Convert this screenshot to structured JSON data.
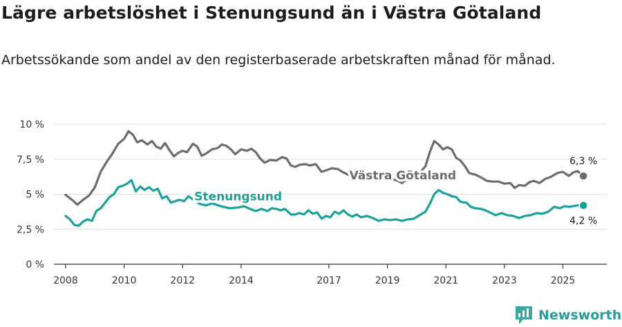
{
  "title": "Lägre arbetslöshet i Stenungsund än i Västra Götaland",
  "subtitle": "Arbetssökande som andel av den registerbaserade arbetskraften månad för månad.",
  "brand": {
    "name": "Newsworthy",
    "icon": "newsworthy-logo-icon",
    "color": "#3aa7a3"
  },
  "chart_data": {
    "type": "line",
    "title": "Lägre arbetslöshet i Stenungsund än i Västra Götaland",
    "xlabel": "",
    "ylabel": "",
    "ylim": [
      0,
      10
    ],
    "xlim": [
      2007.6,
      2026.5
    ],
    "y_ticks": [
      {
        "value": 0,
        "label": "0 %"
      },
      {
        "value": 2.5,
        "label": "2,5 %"
      },
      {
        "value": 5,
        "label": "5 %"
      },
      {
        "value": 7.5,
        "label": "7,5 %"
      },
      {
        "value": 10,
        "label": "10 %"
      }
    ],
    "x_ticks": [
      {
        "value": 2008,
        "label": "2008"
      },
      {
        "value": 2010,
        "label": "2010"
      },
      {
        "value": 2012,
        "label": "2012"
      },
      {
        "value": 2014,
        "label": "2014"
      },
      {
        "value": 2017,
        "label": "2017"
      },
      {
        "value": 2019,
        "label": "2019"
      },
      {
        "value": 2021,
        "label": "2021"
      },
      {
        "value": 2023,
        "label": "2023"
      },
      {
        "value": 2025,
        "label": "2025"
      }
    ],
    "grid": true,
    "series": [
      {
        "name": "Västra Götaland",
        "color": "#6b6b70",
        "end_label": "6,3 %",
        "points": [
          [
            2008.0,
            4.95
          ],
          [
            2008.25,
            4.55
          ],
          [
            2008.4,
            4.25
          ],
          [
            2008.6,
            4.6
          ],
          [
            2008.8,
            4.9
          ],
          [
            2009.0,
            5.5
          ],
          [
            2009.2,
            6.6
          ],
          [
            2009.4,
            7.3
          ],
          [
            2009.6,
            7.9
          ],
          [
            2009.8,
            8.6
          ],
          [
            2010.0,
            8.95
          ],
          [
            2010.15,
            9.5
          ],
          [
            2010.3,
            9.25
          ],
          [
            2010.45,
            8.7
          ],
          [
            2010.6,
            8.85
          ],
          [
            2010.8,
            8.55
          ],
          [
            2010.95,
            8.8
          ],
          [
            2011.1,
            8.4
          ],
          [
            2011.25,
            8.25
          ],
          [
            2011.4,
            8.65
          ],
          [
            2011.55,
            8.15
          ],
          [
            2011.7,
            7.7
          ],
          [
            2011.85,
            7.95
          ],
          [
            2012.0,
            8.1
          ],
          [
            2012.15,
            8.0
          ],
          [
            2012.35,
            8.6
          ],
          [
            2012.5,
            8.4
          ],
          [
            2012.65,
            7.75
          ],
          [
            2012.8,
            7.9
          ],
          [
            2013.0,
            8.2
          ],
          [
            2013.2,
            8.3
          ],
          [
            2013.35,
            8.55
          ],
          [
            2013.5,
            8.45
          ],
          [
            2013.65,
            8.2
          ],
          [
            2013.8,
            7.85
          ],
          [
            2014.0,
            8.2
          ],
          [
            2014.2,
            8.1
          ],
          [
            2014.35,
            8.25
          ],
          [
            2014.5,
            8.0
          ],
          [
            2014.65,
            7.55
          ],
          [
            2014.8,
            7.25
          ],
          [
            2015.0,
            7.45
          ],
          [
            2015.2,
            7.4
          ],
          [
            2015.4,
            7.65
          ],
          [
            2015.55,
            7.55
          ],
          [
            2015.7,
            7.05
          ],
          [
            2015.85,
            6.95
          ],
          [
            2016.0,
            7.1
          ],
          [
            2016.2,
            7.15
          ],
          [
            2016.35,
            7.05
          ],
          [
            2016.55,
            7.15
          ],
          [
            2016.75,
            6.6
          ],
          [
            2016.9,
            6.7
          ],
          [
            2017.1,
            6.85
          ],
          [
            2017.3,
            6.8
          ],
          [
            2017.5,
            6.55
          ],
          [
            2017.7,
            6.35
          ],
          [
            2017.9,
            6.45
          ],
          [
            2018.1,
            6.4
          ],
          [
            2018.3,
            6.35
          ],
          [
            2018.5,
            6.3
          ],
          [
            2018.7,
            6.2
          ],
          [
            2018.9,
            6.15
          ],
          [
            2019.1,
            6.1
          ],
          [
            2019.3,
            6.0
          ],
          [
            2019.5,
            5.8
          ],
          [
            2019.7,
            6.1
          ],
          [
            2019.9,
            6.15
          ],
          [
            2020.1,
            6.5
          ],
          [
            2020.3,
            7.0
          ],
          [
            2020.45,
            8.0
          ],
          [
            2020.6,
            8.8
          ],
          [
            2020.75,
            8.55
          ],
          [
            2020.9,
            8.2
          ],
          [
            2021.05,
            8.35
          ],
          [
            2021.2,
            8.2
          ],
          [
            2021.35,
            7.6
          ],
          [
            2021.5,
            7.4
          ],
          [
            2021.65,
            7.0
          ],
          [
            2021.8,
            6.5
          ],
          [
            2022.0,
            6.4
          ],
          [
            2022.2,
            6.2
          ],
          [
            2022.4,
            5.95
          ],
          [
            2022.6,
            5.9
          ],
          [
            2022.8,
            5.9
          ],
          [
            2023.0,
            5.75
          ],
          [
            2023.2,
            5.8
          ],
          [
            2023.35,
            5.45
          ],
          [
            2023.5,
            5.65
          ],
          [
            2023.7,
            5.6
          ],
          [
            2023.85,
            5.85
          ],
          [
            2024.0,
            5.95
          ],
          [
            2024.2,
            5.8
          ],
          [
            2024.4,
            6.1
          ],
          [
            2024.6,
            6.25
          ],
          [
            2024.8,
            6.5
          ],
          [
            2025.0,
            6.6
          ],
          [
            2025.2,
            6.3
          ],
          [
            2025.35,
            6.55
          ],
          [
            2025.5,
            6.65
          ],
          [
            2025.7,
            6.3
          ]
        ]
      },
      {
        "name": "Stenungsund",
        "color": "#1aa29a",
        "end_label": "4,2 %",
        "points": [
          [
            2008.0,
            3.45
          ],
          [
            2008.15,
            3.2
          ],
          [
            2008.3,
            2.8
          ],
          [
            2008.45,
            2.75
          ],
          [
            2008.6,
            3.05
          ],
          [
            2008.75,
            3.2
          ],
          [
            2008.9,
            3.1
          ],
          [
            2009.05,
            3.8
          ],
          [
            2009.2,
            4.0
          ],
          [
            2009.35,
            4.4
          ],
          [
            2009.5,
            4.8
          ],
          [
            2009.65,
            5.0
          ],
          [
            2009.8,
            5.5
          ],
          [
            2009.95,
            5.6
          ],
          [
            2010.1,
            5.75
          ],
          [
            2010.25,
            6.0
          ],
          [
            2010.4,
            5.2
          ],
          [
            2010.55,
            5.55
          ],
          [
            2010.7,
            5.3
          ],
          [
            2010.85,
            5.5
          ],
          [
            2011.0,
            5.25
          ],
          [
            2011.15,
            5.4
          ],
          [
            2011.3,
            4.7
          ],
          [
            2011.45,
            4.85
          ],
          [
            2011.6,
            4.4
          ],
          [
            2011.75,
            4.5
          ],
          [
            2011.9,
            4.6
          ],
          [
            2012.05,
            4.5
          ],
          [
            2012.2,
            4.85
          ],
          [
            2012.4,
            4.55
          ],
          [
            2012.6,
            4.3
          ],
          [
            2012.8,
            4.2
          ],
          [
            2013.0,
            4.35
          ],
          [
            2013.3,
            4.15
          ],
          [
            2013.6,
            4.0
          ],
          [
            2013.9,
            4.05
          ],
          [
            2014.1,
            4.15
          ],
          [
            2014.3,
            3.95
          ],
          [
            2014.5,
            3.8
          ],
          [
            2014.7,
            3.95
          ],
          [
            2014.9,
            3.8
          ],
          [
            2015.05,
            4.0
          ],
          [
            2015.2,
            3.95
          ],
          [
            2015.35,
            3.85
          ],
          [
            2015.5,
            3.95
          ],
          [
            2015.7,
            3.55
          ],
          [
            2015.85,
            3.55
          ],
          [
            2016.0,
            3.65
          ],
          [
            2016.15,
            3.55
          ],
          [
            2016.3,
            3.85
          ],
          [
            2016.45,
            3.6
          ],
          [
            2016.6,
            3.7
          ],
          [
            2016.75,
            3.25
          ],
          [
            2016.9,
            3.45
          ],
          [
            2017.05,
            3.35
          ],
          [
            2017.2,
            3.75
          ],
          [
            2017.35,
            3.6
          ],
          [
            2017.5,
            3.85
          ],
          [
            2017.65,
            3.55
          ],
          [
            2017.8,
            3.4
          ],
          [
            2017.95,
            3.55
          ],
          [
            2018.1,
            3.35
          ],
          [
            2018.3,
            3.45
          ],
          [
            2018.5,
            3.3
          ],
          [
            2018.7,
            3.1
          ],
          [
            2018.9,
            3.2
          ],
          [
            2019.1,
            3.15
          ],
          [
            2019.3,
            3.2
          ],
          [
            2019.5,
            3.1
          ],
          [
            2019.7,
            3.2
          ],
          [
            2019.9,
            3.25
          ],
          [
            2020.1,
            3.5
          ],
          [
            2020.3,
            3.75
          ],
          [
            2020.45,
            4.3
          ],
          [
            2020.6,
            5.0
          ],
          [
            2020.75,
            5.3
          ],
          [
            2020.9,
            5.1
          ],
          [
            2021.05,
            5.0
          ],
          [
            2021.2,
            4.85
          ],
          [
            2021.35,
            4.8
          ],
          [
            2021.5,
            4.45
          ],
          [
            2021.7,
            4.4
          ],
          [
            2021.85,
            4.1
          ],
          [
            2022.0,
            4.0
          ],
          [
            2022.2,
            3.95
          ],
          [
            2022.35,
            3.85
          ],
          [
            2022.5,
            3.7
          ],
          [
            2022.7,
            3.5
          ],
          [
            2022.9,
            3.65
          ],
          [
            2023.1,
            3.5
          ],
          [
            2023.3,
            3.45
          ],
          [
            2023.5,
            3.3
          ],
          [
            2023.7,
            3.45
          ],
          [
            2023.9,
            3.5
          ],
          [
            2024.1,
            3.65
          ],
          [
            2024.3,
            3.6
          ],
          [
            2024.5,
            3.75
          ],
          [
            2024.7,
            4.1
          ],
          [
            2024.9,
            4.0
          ],
          [
            2025.05,
            4.15
          ],
          [
            2025.2,
            4.1
          ],
          [
            2025.35,
            4.15
          ],
          [
            2025.5,
            4.2
          ],
          [
            2025.7,
            4.2
          ]
        ]
      }
    ]
  }
}
